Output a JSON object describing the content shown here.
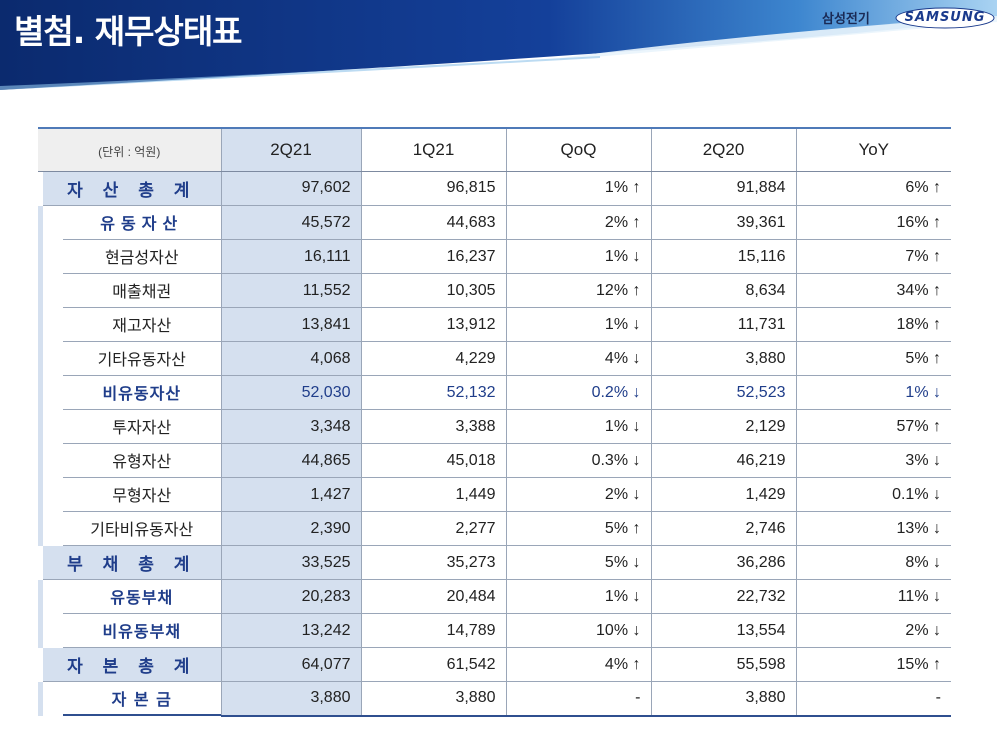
{
  "header": {
    "title": "별첨. 재무상태표",
    "company": "삼성전기",
    "brand": "SAMSUNG"
  },
  "table": {
    "unit": "(단위 : 억원)",
    "columns": [
      "2Q21",
      "1Q21",
      "QoQ",
      "2Q20",
      "YoY"
    ],
    "rows": [
      {
        "label": "자 산 총 계",
        "level": 0,
        "values": [
          "97,602",
          "96,815",
          "1% ↑",
          "91,884",
          "6% ↑"
        ]
      },
      {
        "label": "유동자산",
        "level": 1,
        "values": [
          "45,572",
          "44,683",
          "2% ↑",
          "39,361",
          "16% ↑"
        ]
      },
      {
        "label": "현금성자산",
        "level": 2,
        "values": [
          "16,111",
          "16,237",
          "1% ↓",
          "15,116",
          "7% ↑"
        ]
      },
      {
        "label": "매출채권",
        "level": 2,
        "values": [
          "11,552",
          "10,305",
          "12% ↑",
          "8,634",
          "34% ↑"
        ]
      },
      {
        "label": "재고자산",
        "level": 2,
        "values": [
          "13,841",
          "13,912",
          "1% ↓",
          "11,731",
          "18% ↑"
        ]
      },
      {
        "label": "기타유동자산",
        "level": 2,
        "values": [
          "4,068",
          "4,229",
          "4% ↓",
          "3,880",
          "5% ↑"
        ]
      },
      {
        "label": "비유동자산",
        "level": 1,
        "values": [
          "52,030",
          "52,132",
          "0.2% ↓",
          "52,523",
          "1% ↓"
        ]
      },
      {
        "label": "투자자산",
        "level": 2,
        "values": [
          "3,348",
          "3,388",
          "1% ↓",
          "2,129",
          "57% ↑"
        ]
      },
      {
        "label": "유형자산",
        "level": 2,
        "values": [
          "44,865",
          "45,018",
          "0.3% ↓",
          "46,219",
          "3% ↓"
        ]
      },
      {
        "label": "무형자산",
        "level": 2,
        "values": [
          "1,427",
          "1,449",
          "2% ↓",
          "1,429",
          "0.1% ↓"
        ]
      },
      {
        "label": "기타비유동자산",
        "level": 2,
        "values": [
          "2,390",
          "2,277",
          "5% ↑",
          "2,746",
          "13% ↓"
        ]
      },
      {
        "label": "부 채 총 계",
        "level": 0,
        "values": [
          "33,525",
          "35,273",
          "5% ↓",
          "36,286",
          "8% ↓"
        ]
      },
      {
        "label": "유동부채",
        "level": 1,
        "values": [
          "20,283",
          "20,484",
          "1% ↓",
          "22,732",
          "11% ↓"
        ]
      },
      {
        "label": "비유동부채",
        "level": 1,
        "values": [
          "13,242",
          "14,789",
          "10% ↓",
          "13,554",
          "2% ↓"
        ]
      },
      {
        "label": "자 본 총 계",
        "level": 0,
        "values": [
          "64,077",
          "61,542",
          "4% ↑",
          "55,598",
          "15% ↑"
        ]
      },
      {
        "label": "자 본 금",
        "level": 1,
        "values": [
          "3,880",
          "3,880",
          "-",
          "3,880",
          "-"
        ]
      }
    ]
  },
  "colors": {
    "banner_dark": "#0b2a6e",
    "banner_light": "#5aa6e0",
    "label_blue": "#1f3d8a",
    "current_col_bg": "#d5e0ef"
  }
}
